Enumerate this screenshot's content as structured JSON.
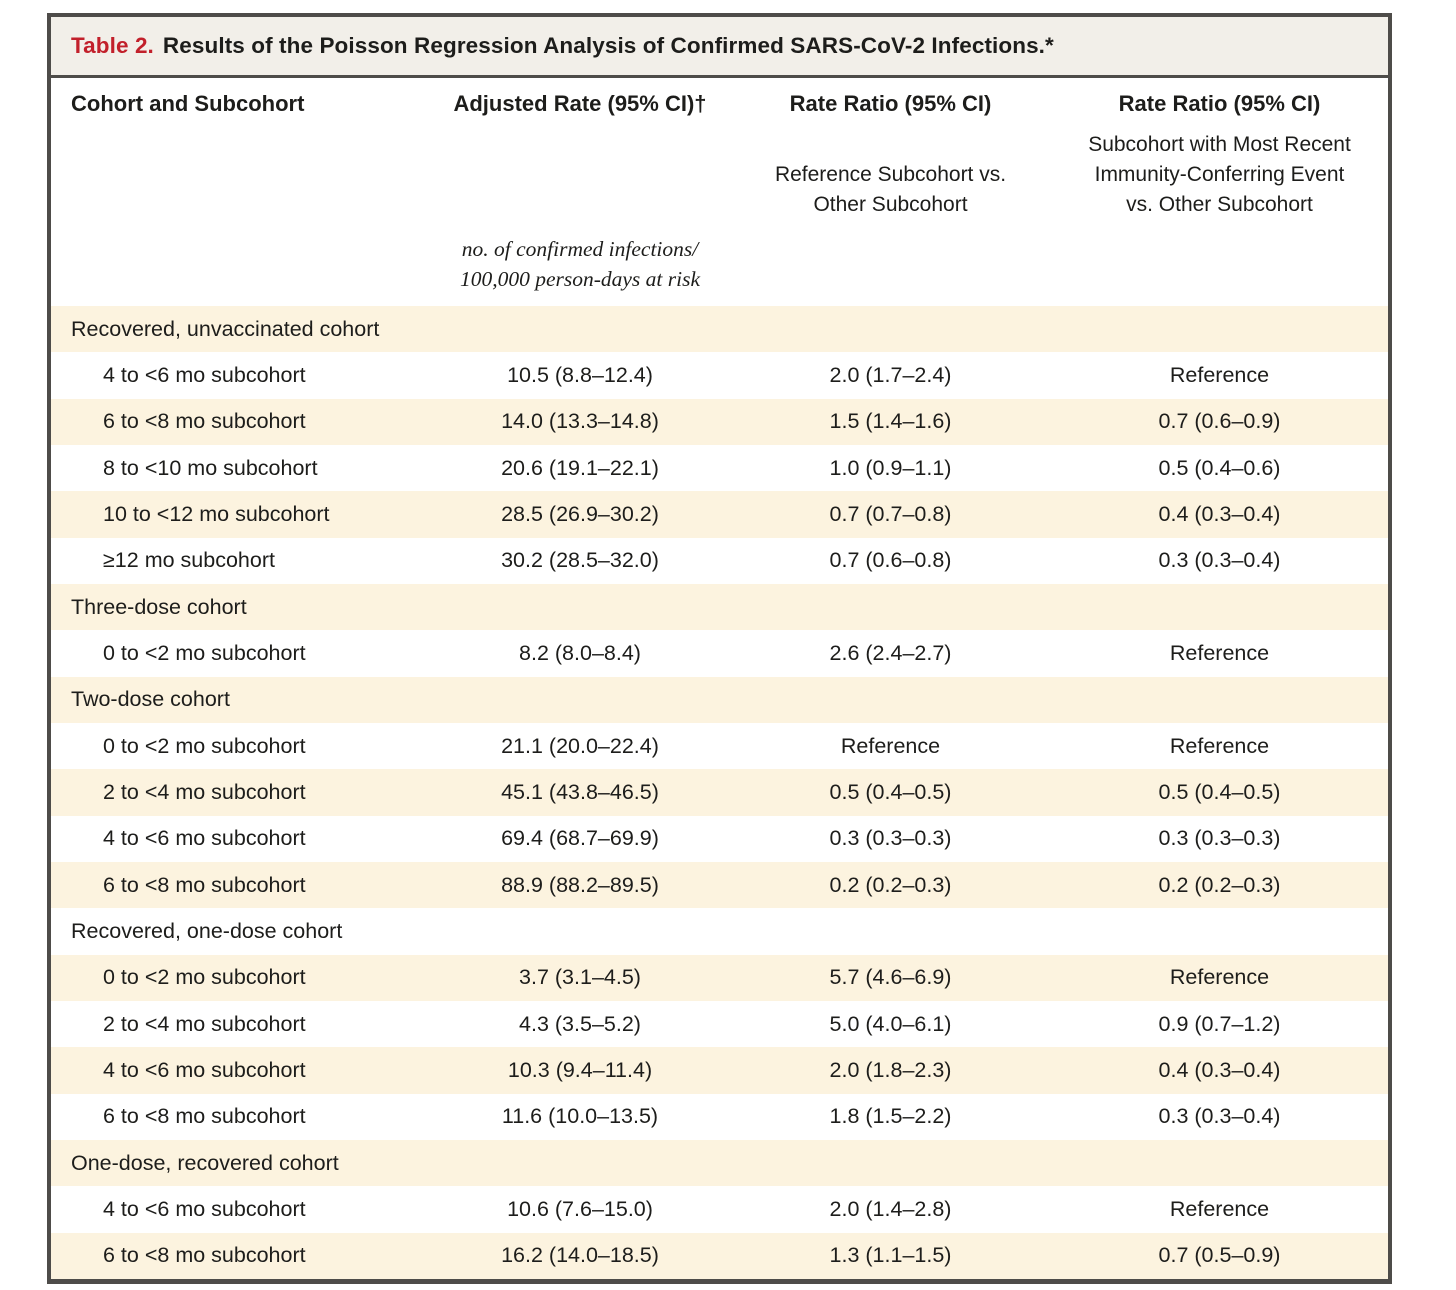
{
  "title": {
    "label": "Table 2.",
    "text": "Results of the Poisson Regression Analysis of Confirmed SARS-CoV-2 Infections.*"
  },
  "header": {
    "col1": "Cohort and Subcohort",
    "col2": "Adjusted Rate (95% CI)†",
    "col3": "Rate Ratio (95% CI)",
    "col4": "Rate Ratio (95% CI)",
    "col3_sub": [
      "Reference Subcohort vs.",
      "Other Subcohort"
    ],
    "col4_sub": [
      "Subcohort with Most Recent",
      "Immunity-Conferring Event",
      "vs. Other Subcohort"
    ],
    "col2_unit": [
      "no. of confirmed infections/",
      "100,000 person-days at risk"
    ]
  },
  "rows": [
    {
      "type": "section",
      "label": "Recovered, unvaccinated cohort",
      "adjusted_rate": "",
      "rate_ratio_reference": "",
      "rate_ratio_recent": ""
    },
    {
      "type": "data",
      "label": "4 to <6 mo subcohort",
      "adjusted_rate": "10.5 (8.8–12.4)",
      "rate_ratio_reference": "2.0 (1.7–2.4)",
      "rate_ratio_recent": "Reference"
    },
    {
      "type": "data",
      "label": "6 to <8 mo subcohort",
      "adjusted_rate": "14.0 (13.3–14.8)",
      "rate_ratio_reference": "1.5 (1.4–1.6)",
      "rate_ratio_recent": "0.7 (0.6–0.9)"
    },
    {
      "type": "data",
      "label": "8 to <10 mo subcohort",
      "adjusted_rate": "20.6 (19.1–22.1)",
      "rate_ratio_reference": "1.0 (0.9–1.1)",
      "rate_ratio_recent": "0.5 (0.4–0.6)"
    },
    {
      "type": "data",
      "label": "10 to <12 mo subcohort",
      "adjusted_rate": "28.5 (26.9–30.2)",
      "rate_ratio_reference": "0.7 (0.7–0.8)",
      "rate_ratio_recent": "0.4 (0.3–0.4)"
    },
    {
      "type": "data",
      "label": "≥12 mo subcohort",
      "adjusted_rate": "30.2 (28.5–32.0)",
      "rate_ratio_reference": "0.7 (0.6–0.8)",
      "rate_ratio_recent": "0.3 (0.3–0.4)"
    },
    {
      "type": "section",
      "label": "Three-dose cohort",
      "adjusted_rate": "",
      "rate_ratio_reference": "",
      "rate_ratio_recent": ""
    },
    {
      "type": "data",
      "label": "0 to <2 mo subcohort",
      "adjusted_rate": "8.2 (8.0–8.4)",
      "rate_ratio_reference": "2.6 (2.4–2.7)",
      "rate_ratio_recent": "Reference"
    },
    {
      "type": "section",
      "label": "Two-dose cohort",
      "adjusted_rate": "",
      "rate_ratio_reference": "",
      "rate_ratio_recent": ""
    },
    {
      "type": "data",
      "label": "0 to <2 mo subcohort",
      "adjusted_rate": "21.1 (20.0–22.4)",
      "rate_ratio_reference": "Reference",
      "rate_ratio_recent": "Reference"
    },
    {
      "type": "data",
      "label": "2 to <4 mo subcohort",
      "adjusted_rate": "45.1 (43.8–46.5)",
      "rate_ratio_reference": "0.5 (0.4–0.5)",
      "rate_ratio_recent": "0.5 (0.4–0.5)"
    },
    {
      "type": "data",
      "label": "4 to <6 mo subcohort",
      "adjusted_rate": "69.4 (68.7–69.9)",
      "rate_ratio_reference": "0.3 (0.3–0.3)",
      "rate_ratio_recent": "0.3 (0.3–0.3)"
    },
    {
      "type": "data",
      "label": "6 to <8 mo subcohort",
      "adjusted_rate": "88.9 (88.2–89.5)",
      "rate_ratio_reference": "0.2 (0.2–0.3)",
      "rate_ratio_recent": "0.2 (0.2–0.3)"
    },
    {
      "type": "section",
      "label": "Recovered, one-dose cohort",
      "adjusted_rate": "",
      "rate_ratio_reference": "",
      "rate_ratio_recent": ""
    },
    {
      "type": "data",
      "label": "0 to <2 mo subcohort",
      "adjusted_rate": "3.7 (3.1–4.5)",
      "rate_ratio_reference": "5.7 (4.6–6.9)",
      "rate_ratio_recent": "Reference"
    },
    {
      "type": "data",
      "label": "2 to <4 mo subcohort",
      "adjusted_rate": "4.3 (3.5–5.2)",
      "rate_ratio_reference": "5.0 (4.0–6.1)",
      "rate_ratio_recent": "0.9 (0.7–1.2)"
    },
    {
      "type": "data",
      "label": "4 to <6 mo subcohort",
      "adjusted_rate": "10.3 (9.4–11.4)",
      "rate_ratio_reference": "2.0 (1.8–2.3)",
      "rate_ratio_recent": "0.4 (0.3–0.4)"
    },
    {
      "type": "data",
      "label": "6 to <8 mo subcohort",
      "adjusted_rate": "11.6 (10.0–13.5)",
      "rate_ratio_reference": "1.8 (1.5–2.2)",
      "rate_ratio_recent": "0.3 (0.3–0.4)"
    },
    {
      "type": "section",
      "label": "One-dose, recovered cohort",
      "adjusted_rate": "",
      "rate_ratio_reference": "",
      "rate_ratio_recent": ""
    },
    {
      "type": "data",
      "label": "4 to <6 mo subcohort",
      "adjusted_rate": "10.6 (7.6–15.0)",
      "rate_ratio_reference": "2.0 (1.4–2.8)",
      "rate_ratio_recent": "Reference"
    },
    {
      "type": "data",
      "label": "6 to <8 mo subcohort",
      "adjusted_rate": "16.2 (14.0–18.5)",
      "rate_ratio_reference": "1.3 (1.1–1.5)",
      "rate_ratio_recent": "0.7 (0.5–0.9)"
    }
  ],
  "colors": {
    "accent_red": "#C2202B",
    "row_stripe": "#FCF3DF",
    "title_bar_bg": "#F2EFE9",
    "border": "#4E4C49",
    "text": "#1D1D1B"
  }
}
